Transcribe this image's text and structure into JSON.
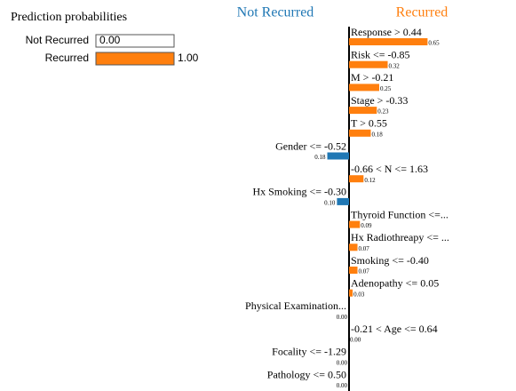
{
  "chart_data": {
    "type": "lime",
    "probabilities": {
      "title": "Prediction probabilities",
      "categories": [
        "Not Recurred",
        "Recurred"
      ],
      "values": [
        0.0,
        1.0
      ],
      "value_labels": [
        "0.00",
        "1.00"
      ],
      "colors": [
        "#1f77b4",
        "#ff7f0e"
      ]
    },
    "class_names": [
      "Not Recurred",
      "Recurred"
    ],
    "class_colors": [
      "#1f77b4",
      "#ff7f0e"
    ],
    "features": [
      "Response > 0.44",
      "Risk <= -0.85",
      "M > -0.21",
      "Stage > -0.33",
      "T > 0.55",
      "Gender <= -0.52",
      "-0.66 < N <= 1.63",
      "Hx Smoking <= -0.30",
      "Thyroid Function <=...",
      "Hx Radiothreapy <= ...",
      "Smoking <= -0.40",
      "Adenopathy <= 0.05",
      "Physical Examination...",
      "-0.21 < Age <= 0.64",
      "Focality <= -1.29",
      "Pathology <= 0.50"
    ],
    "values": [
      0.65,
      0.32,
      0.25,
      0.23,
      0.18,
      -0.18,
      0.12,
      -0.1,
      0.09,
      0.07,
      0.07,
      0.03,
      -0.0,
      0.0,
      -0.0,
      -0.0
    ],
    "value_labels": [
      "0.65",
      "0.32",
      "0.25",
      "0.23",
      "0.18",
      "0.18",
      "0.12",
      "0.10",
      "0.09",
      "0.07",
      "0.07",
      "0.03",
      "0.00",
      "0.00",
      "0.00",
      "0.00"
    ]
  }
}
